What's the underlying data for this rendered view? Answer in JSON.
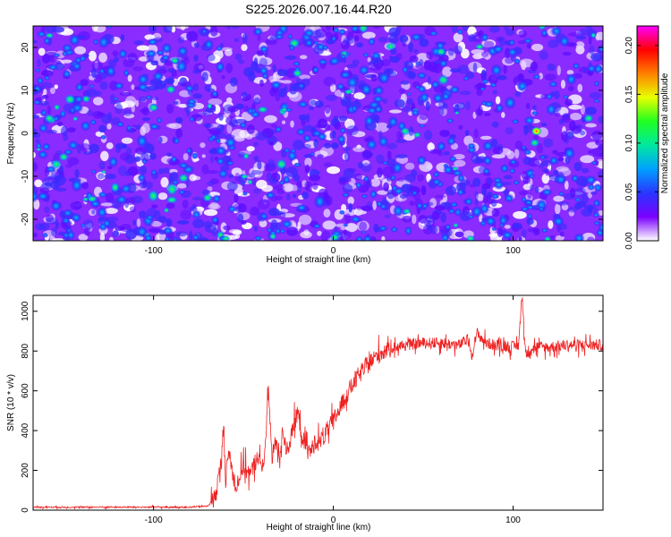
{
  "chart_data": [
    {
      "type": "heatmap",
      "title": "S225.2026.007.16.44.R20",
      "xlabel": "Height of straight line (km)",
      "ylabel": "Frequency (Hz)",
      "xlim": [
        -167,
        150
      ],
      "ylim": [
        -25,
        25
      ],
      "xticks": [
        -100,
        0,
        100
      ],
      "xtick_labels": [
        "-100",
        "0",
        "100"
      ],
      "yticks": [
        -20,
        -10,
        0,
        10,
        20
      ],
      "ytick_labels": [
        "-20",
        "-10",
        "0",
        "10",
        "20"
      ],
      "colorbar": {
        "label": "Normalized spectral amplitude",
        "range": [
          0.0,
          0.22
        ],
        "ticks": [
          0.0,
          0.05,
          0.1,
          0.15,
          0.2
        ],
        "tick_labels": [
          "0.00",
          "0.05",
          "0.10",
          "0.15",
          "0.20"
        ],
        "colors": [
          "#ffffff",
          "#7a00ff",
          "#2a35ff",
          "#00a0ff",
          "#00e8a0",
          "#20ff20",
          "#e8ff00",
          "#ff8000",
          "#ff0000",
          "#ff00ff"
        ]
      },
      "peaks": [
        {
          "x": 113,
          "y": 0.5,
          "v": 0.19
        },
        {
          "x": 112,
          "y": -2.2,
          "v": 0.13
        },
        {
          "x": 40,
          "y": 0.5,
          "v": 0.12
        },
        {
          "x": -70,
          "y": -15,
          "v": 0.12
        },
        {
          "x": -20,
          "y": 14,
          "v": 0.11
        },
        {
          "x": -158,
          "y": 3.5,
          "v": 0.1
        },
        {
          "x": -150,
          "y": -5.5,
          "v": 0.1
        },
        {
          "x": 60,
          "y": 19,
          "v": 0.09
        },
        {
          "x": 142,
          "y": 3.5,
          "v": 0.09
        },
        {
          "x": -100,
          "y": 6,
          "v": 0.09
        }
      ]
    },
    {
      "type": "line",
      "xlabel": "Height of straight line (km)",
      "ylabel": "SNR (10 * v/v)",
      "xlim": [
        -167,
        150
      ],
      "ylim": [
        0,
        1080
      ],
      "xticks": [
        -100,
        0,
        100
      ],
      "xtick_labels": [
        "-100",
        "0",
        "100"
      ],
      "yticks": [
        0,
        200,
        400,
        600,
        800,
        1000
      ],
      "ytick_labels": [
        "0",
        "200",
        "400",
        "600",
        "800",
        "1000"
      ],
      "series": [
        {
          "name": "SNR",
          "color": "#ee2222",
          "x": [
            -167,
            -140,
            -110,
            -80,
            -70,
            -66,
            -62,
            -61,
            -60,
            -58,
            -56,
            -54,
            -50,
            -46,
            -42,
            -40,
            -38,
            -36,
            -34,
            -32,
            -30,
            -28,
            -26,
            -24,
            -22,
            -20,
            -18,
            -16,
            -14,
            -12,
            -10,
            -8,
            -6,
            -4,
            -2,
            0,
            4,
            8,
            12,
            16,
            20,
            25,
            30,
            40,
            50,
            60,
            70,
            75,
            77,
            80,
            85,
            90,
            100,
            103,
            105,
            107,
            110,
            120,
            130,
            140,
            150
          ],
          "values": [
            15,
            15,
            15,
            15,
            20,
            60,
            250,
            470,
            150,
            300,
            180,
            120,
            220,
            180,
            280,
            200,
            300,
            600,
            250,
            350,
            280,
            400,
            300,
            350,
            420,
            500,
            400,
            330,
            300,
            300,
            350,
            340,
            360,
            390,
            420,
            450,
            520,
            590,
            650,
            700,
            740,
            780,
            810,
            830,
            840,
            840,
            830,
            860,
            780,
            890,
            840,
            830,
            820,
            830,
            1080,
            780,
            820,
            820,
            830,
            830,
            830
          ],
          "noise_amplitude": 60
        }
      ]
    }
  ]
}
